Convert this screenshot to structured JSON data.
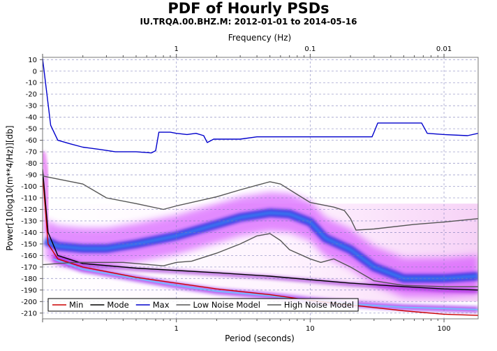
{
  "chart_data": {
    "type": "line",
    "title": "PDF of Hourly PSDs",
    "subtitle": "IU.TRQA.00.BHZ.M: 2012-01-01 to 2014-05-16",
    "xlabel": "Period (seconds)",
    "x2label": "Frequency (Hz)",
    "ylabel": "Power[10log10(m**4/Hz)][db]",
    "x_scale": "log",
    "xlim": [
      0.1,
      180
    ],
    "ylim": [
      -215,
      12
    ],
    "x_ticks": [
      1,
      10,
      100
    ],
    "x_tick_labels": [
      "1",
      "10",
      "100"
    ],
    "x2_ticks": [
      1,
      10,
      100
    ],
    "x2_tick_labels": [
      "1",
      "0.1",
      "0.01"
    ],
    "y_ticks": [
      10,
      0,
      -10,
      -20,
      -30,
      -40,
      -50,
      -60,
      -70,
      -80,
      -90,
      -100,
      -110,
      -120,
      -130,
      -140,
      -150,
      -160,
      -170,
      -180,
      -190,
      -200,
      -210
    ],
    "grid": true,
    "legend_position": "bottom-left",
    "series": [
      {
        "name": "Min",
        "color": "#cc0000",
        "points": [
          [
            0.1,
            -90
          ],
          [
            0.11,
            -150
          ],
          [
            0.13,
            -163
          ],
          [
            0.2,
            -170
          ],
          [
            0.5,
            -179
          ],
          [
            1,
            -184
          ],
          [
            2,
            -189
          ],
          [
            5,
            -194
          ],
          [
            10,
            -199
          ],
          [
            20,
            -203
          ],
          [
            50,
            -208
          ],
          [
            100,
            -211
          ],
          [
            180,
            -212
          ]
        ]
      },
      {
        "name": "Mode",
        "color": "#000000",
        "points": [
          [
            0.1,
            -85
          ],
          [
            0.11,
            -140
          ],
          [
            0.13,
            -160
          ],
          [
            0.2,
            -167
          ],
          [
            0.5,
            -171
          ],
          [
            1,
            -173
          ],
          [
            2,
            -175
          ],
          [
            5,
            -178
          ],
          [
            10,
            -181
          ],
          [
            20,
            -184
          ],
          [
            50,
            -187
          ],
          [
            100,
            -189
          ],
          [
            180,
            -190
          ]
        ]
      },
      {
        "name": "Max",
        "color": "#0000cc",
        "points": [
          [
            0.1,
            11
          ],
          [
            0.115,
            -47
          ],
          [
            0.13,
            -60
          ],
          [
            0.16,
            -63
          ],
          [
            0.2,
            -66
          ],
          [
            0.27,
            -68
          ],
          [
            0.35,
            -70
          ],
          [
            0.5,
            -70
          ],
          [
            0.65,
            -71
          ],
          [
            0.7,
            -69
          ],
          [
            0.74,
            -53
          ],
          [
            0.9,
            -53
          ],
          [
            1,
            -54
          ],
          [
            1.2,
            -55
          ],
          [
            1.4,
            -54
          ],
          [
            1.6,
            -56
          ],
          [
            1.7,
            -62
          ],
          [
            1.9,
            -59
          ],
          [
            2.2,
            -59
          ],
          [
            3,
            -59
          ],
          [
            4,
            -57
          ],
          [
            6,
            -57
          ],
          [
            10,
            -57
          ],
          [
            20,
            -57
          ],
          [
            29,
            -57
          ],
          [
            30,
            -53
          ],
          [
            32,
            -45
          ],
          [
            40,
            -45
          ],
          [
            60,
            -45
          ],
          [
            68,
            -45
          ],
          [
            75,
            -54
          ],
          [
            100,
            -55
          ],
          [
            150,
            -56
          ],
          [
            180,
            -54
          ]
        ]
      },
      {
        "name": "Low Noise Model",
        "color": "#555555",
        "points": [
          [
            0.1,
            -168
          ],
          [
            0.17,
            -166
          ],
          [
            0.4,
            -166
          ],
          [
            0.8,
            -169
          ],
          [
            1,
            -166
          ],
          [
            1.3,
            -165
          ],
          [
            2,
            -158
          ],
          [
            3,
            -150
          ],
          [
            4,
            -143
          ],
          [
            5,
            -141
          ],
          [
            6,
            -147
          ],
          [
            7,
            -155
          ],
          [
            10,
            -163
          ],
          [
            12,
            -166
          ],
          [
            15,
            -163
          ],
          [
            20,
            -170
          ],
          [
            30,
            -182
          ],
          [
            50,
            -186
          ],
          [
            100,
            -187
          ],
          [
            180,
            -187
          ]
        ]
      },
      {
        "name": "High Noise Model",
        "color": "#555555",
        "points": [
          [
            0.1,
            -91
          ],
          [
            0.2,
            -98
          ],
          [
            0.3,
            -110
          ],
          [
            0.5,
            -115
          ],
          [
            0.8,
            -120
          ],
          [
            1,
            -117
          ],
          [
            2,
            -109
          ],
          [
            3,
            -103
          ],
          [
            4,
            -99
          ],
          [
            5,
            -96
          ],
          [
            6,
            -98
          ],
          [
            8,
            -107
          ],
          [
            10,
            -114
          ],
          [
            15,
            -118
          ],
          [
            18,
            -121
          ],
          [
            20,
            -128
          ],
          [
            22,
            -138
          ],
          [
            30,
            -137
          ],
          [
            60,
            -133
          ],
          [
            100,
            -131
          ],
          [
            180,
            -128
          ]
        ]
      }
    ]
  }
}
